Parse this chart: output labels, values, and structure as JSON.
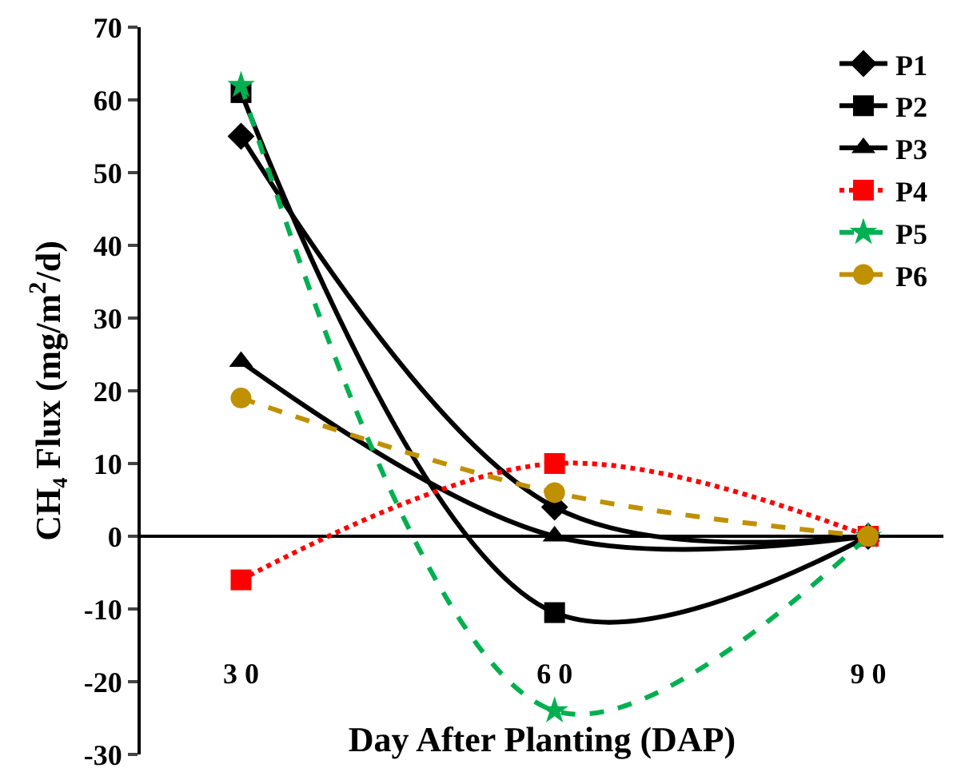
{
  "chart_data": {
    "type": "line",
    "xlabel": "Day After Planting (DAP)",
    "ylabel": "CH₄ Flux (mg/m$^{2}$/d)",
    "categories": [
      "3 0",
      "6 0",
      "9 0"
    ],
    "series": [
      {
        "name": "P1",
        "color": "#000000",
        "values": [
          55,
          4,
          0
        ],
        "marker": "diamond",
        "line_style": "solid"
      },
      {
        "name": "P2",
        "color": "#000000",
        "values": [
          61,
          -10.5,
          0
        ],
        "marker": "square",
        "line_style": "solid"
      },
      {
        "name": "P3",
        "color": "#000000",
        "values": [
          24,
          0,
          0
        ],
        "marker": "triangle",
        "line_style": "solid"
      },
      {
        "name": "P4",
        "color": "#ff0000",
        "values": [
          -6,
          10,
          0
        ],
        "marker": "square",
        "line_style": "dotted"
      },
      {
        "name": "P5",
        "color": "#00b050",
        "values": [
          62,
          -24,
          0
        ],
        "marker": "star",
        "line_style": "dashed"
      },
      {
        "name": "P6",
        "color": "#bf9000",
        "values": [
          19,
          6,
          0
        ],
        "marker": "circle",
        "line_style": "dashed"
      }
    ],
    "ylim": [
      -30,
      70
    ],
    "yticks": [
      -30,
      -20,
      -10,
      0,
      10,
      20,
      30,
      40,
      50,
      60,
      70
    ],
    "ref_lines": [
      {
        "axis": "y",
        "value": 0,
        "color": "#000000"
      }
    ],
    "grid": false,
    "legend": "top right"
  }
}
